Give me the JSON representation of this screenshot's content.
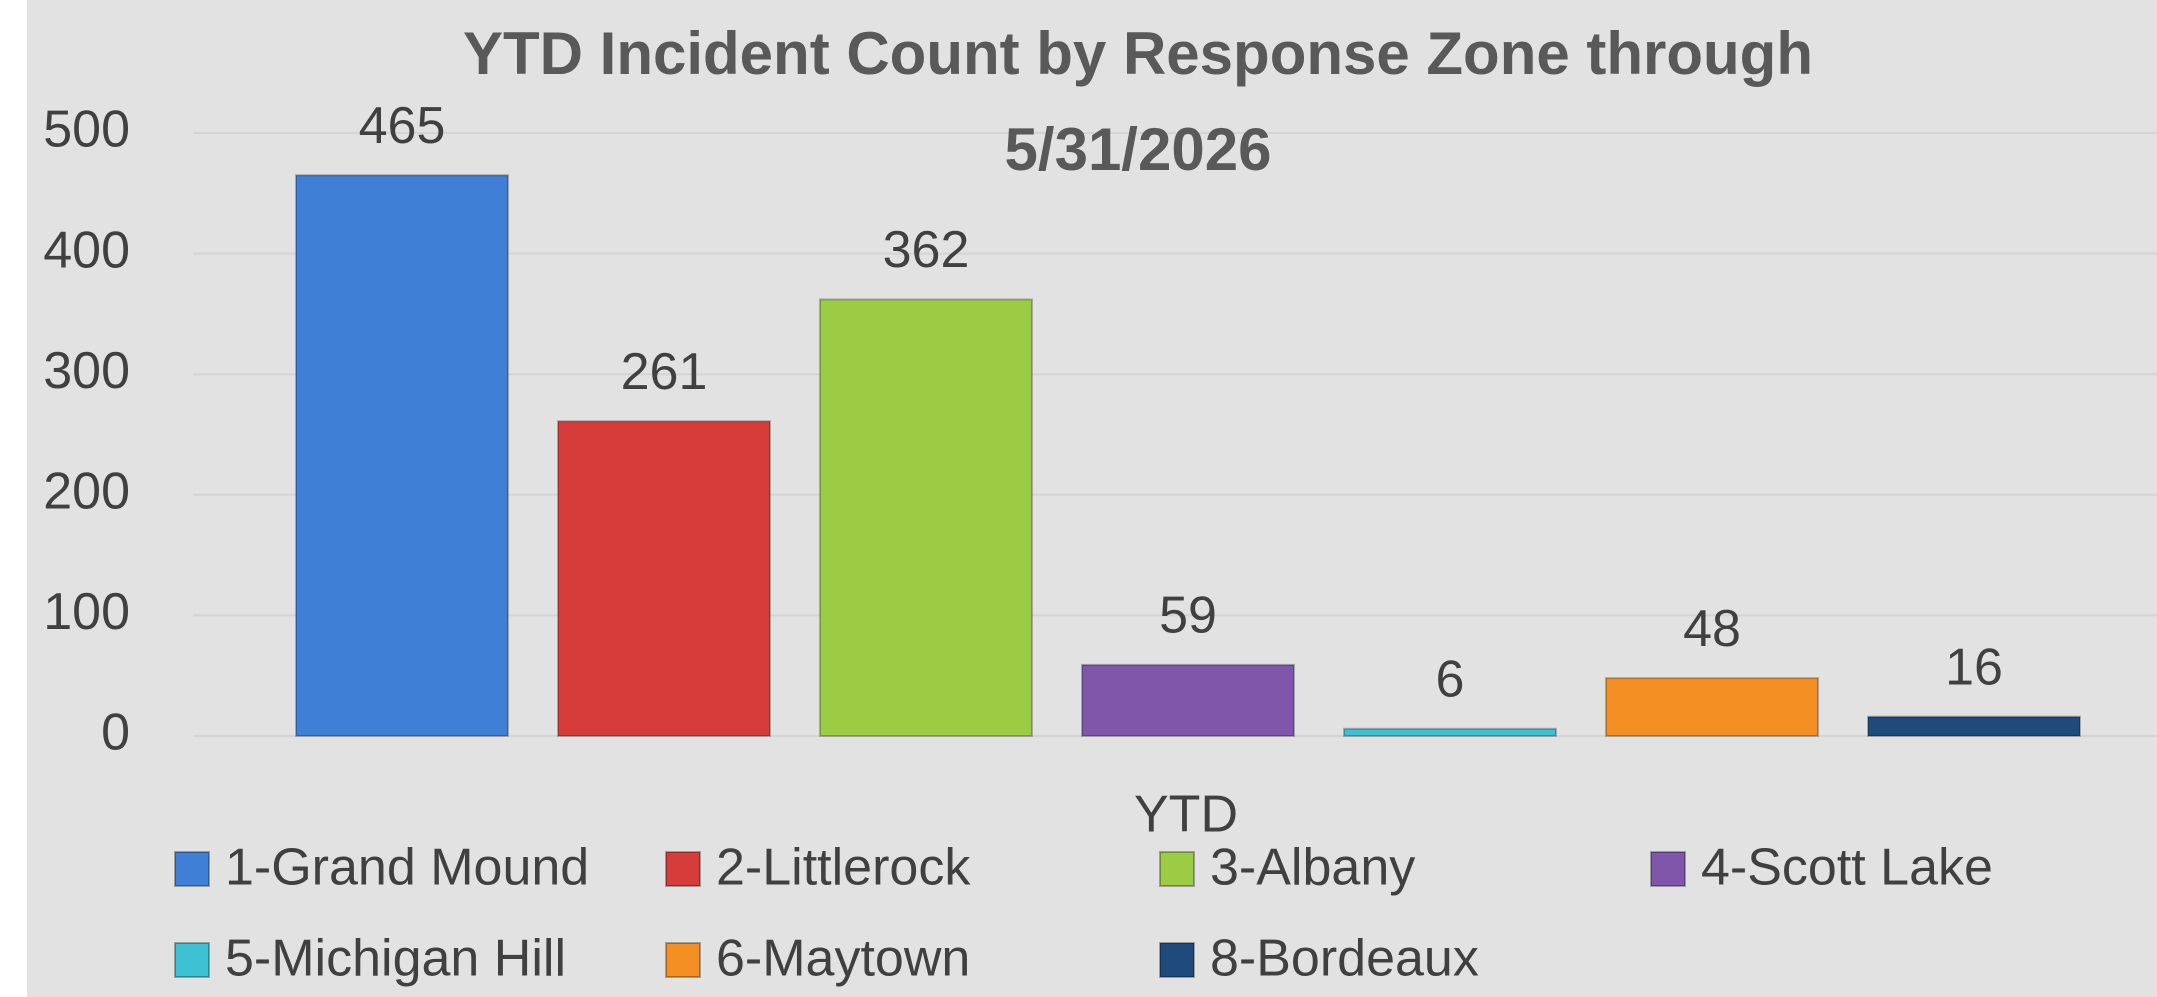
{
  "chart_data": {
    "type": "bar",
    "title": "YTD Incident Count by Response Zone through 5/31/2026",
    "categories": [
      "YTD"
    ],
    "series": [
      {
        "name": "1-Grand Mound",
        "color": "#3f7fd6",
        "values": [
          465
        ]
      },
      {
        "name": "2-Littlerock",
        "color": "#d63c3a",
        "values": [
          261
        ]
      },
      {
        "name": "3-Albany",
        "color": "#9ccc44",
        "values": [
          362
        ]
      },
      {
        "name": "4-Scott Lake",
        "color": "#7f56aa",
        "values": [
          59
        ]
      },
      {
        "name": "5-Michigan Hill",
        "color": "#3cc0d4",
        "values": [
          6
        ]
      },
      {
        "name": "6-Maytown",
        "color": "#f28e22",
        "values": [
          48
        ]
      },
      {
        "name": "8-Bordeaux",
        "color": "#1f4a7c",
        "values": [
          16
        ]
      }
    ],
    "ylim": [
      0,
      500
    ],
    "yticks": [
      0,
      100,
      200,
      300,
      400,
      500
    ],
    "grid": true,
    "legend": "bottom"
  }
}
